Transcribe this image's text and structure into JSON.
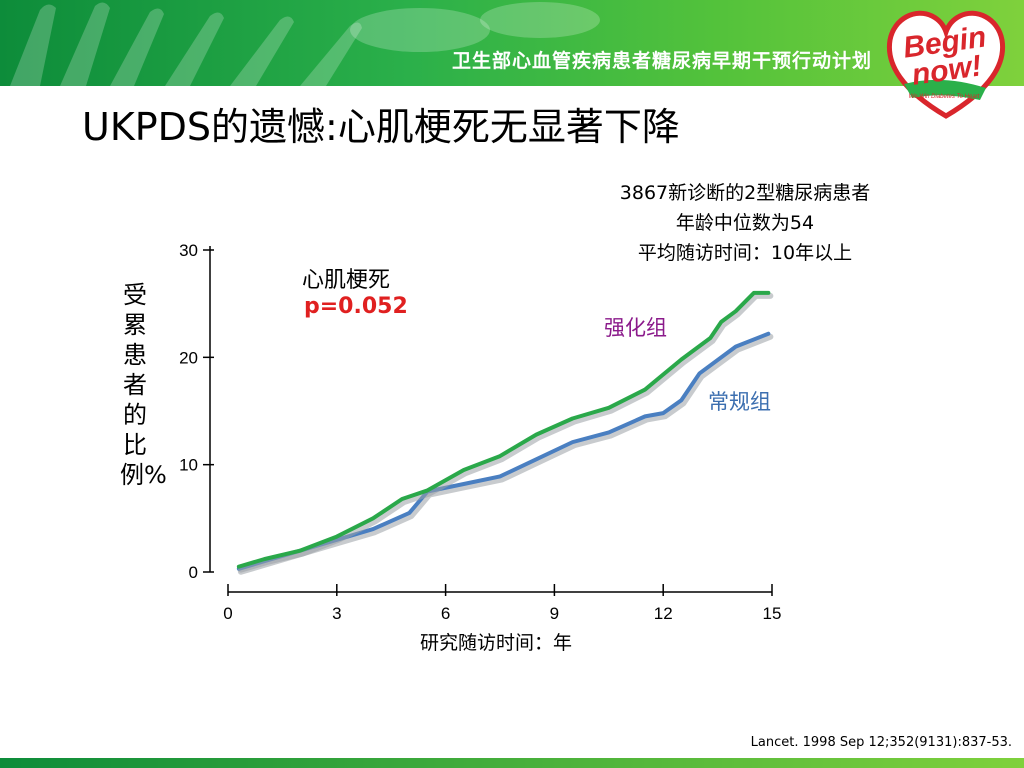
{
  "header": {
    "banner_title": "卫生部心血管疾病患者糖尿病早期干预行动计划",
    "logo_text_1": "Begin",
    "logo_text_2": "now!",
    "logo_tagline": "We Win Diabetes To Heart"
  },
  "slide": {
    "title": "UKPDS的遗憾:心肌梗死无显著下降",
    "citation": "Lancet. 1998 Sep 12;352(9131):837-53.",
    "info_lines": [
      "3867新诊断的2型糖尿病患者",
      "年龄中位数为54",
      "平均随访时间：10年以上"
    ]
  },
  "colors": {
    "intensive": "#2aa84a",
    "conventional": "#4a7fc1",
    "p_value": "#e02020",
    "intensive_label": "#8b1a8b",
    "conventional_label": "#3c6fb0",
    "banner": "#2bb04a"
  },
  "chart_data": {
    "type": "line",
    "xlabel": "研究随访时间：年",
    "ylabel": "受累患者的比例%",
    "xlim": [
      0,
      15
    ],
    "ylim": [
      0,
      30
    ],
    "x_ticks": [
      0,
      3,
      6,
      9,
      12,
      15
    ],
    "y_ticks": [
      0,
      10,
      20,
      30
    ],
    "annotation": {
      "title": "心肌梗死",
      "p_value": "p=0.052"
    },
    "series": [
      {
        "name": "强化组",
        "x": [
          0.3,
          1,
          2,
          3,
          4,
          4.8,
          5.5,
          6.5,
          7.5,
          8.5,
          9.5,
          10.5,
          11.5,
          12.5,
          13.3,
          13.6,
          14,
          14.5,
          14.9
        ],
        "y": [
          0.5,
          1.2,
          2,
          3.3,
          5,
          6.8,
          7.6,
          9.5,
          10.8,
          12.8,
          14.3,
          15.3,
          17,
          19.8,
          21.8,
          23.3,
          24.3,
          26,
          26
        ]
      },
      {
        "name": "常规组",
        "x": [
          0.3,
          1,
          2,
          3,
          4,
          5,
          5.5,
          6.5,
          7.5,
          8.5,
          9.5,
          10.5,
          11.5,
          12,
          12.5,
          13,
          14,
          14.9
        ],
        "y": [
          0.3,
          1,
          2,
          3,
          4,
          5.5,
          7.5,
          8.2,
          8.9,
          10.5,
          12.1,
          13,
          14.5,
          14.8,
          16,
          18.5,
          21,
          22.2
        ]
      }
    ]
  }
}
